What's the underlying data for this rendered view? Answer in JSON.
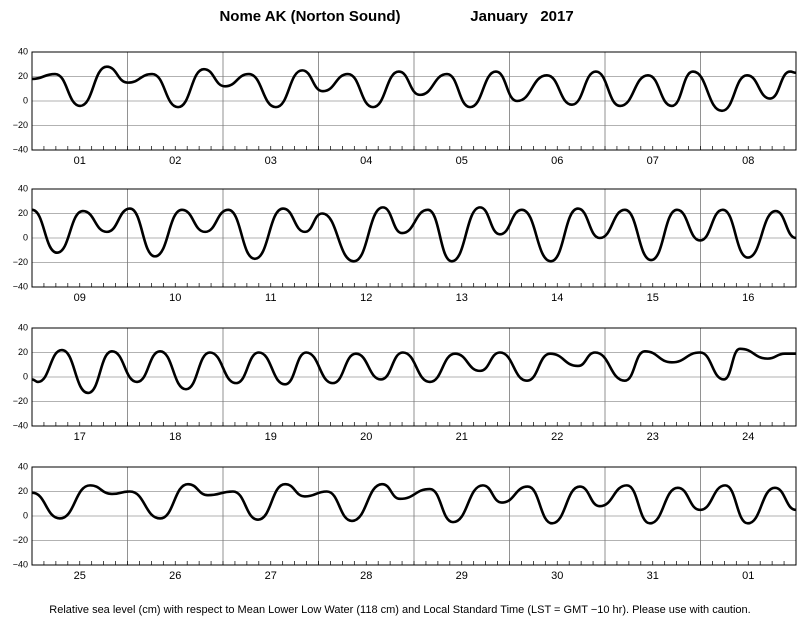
{
  "title": "Nome AK (Norton Sound)",
  "date": "January   2017",
  "footnote": "Relative sea level (cm) with respect to Mean Lower Low Water (118 cm) and Local Standard Time (LST = GMT −10 hr). Please use with caution.",
  "chart_data": [
    {
      "type": "line",
      "xlim": [
        0,
        192
      ],
      "ylim": [
        -40,
        40
      ],
      "yticks": [
        40,
        20,
        0,
        {
          "value": -20,
          "label": "−20"
        },
        {
          "value": -40,
          "label": "−40"
        }
      ],
      "xticks": [
        {
          "value": 12,
          "label": "01"
        },
        {
          "value": 36,
          "label": "02"
        },
        {
          "value": 60,
          "label": "03"
        },
        {
          "value": 84,
          "label": "04"
        },
        {
          "value": 108,
          "label": "05"
        },
        {
          "value": 132,
          "label": "06"
        },
        {
          "value": 156,
          "label": "07"
        },
        {
          "value": 180,
          "label": "08"
        }
      ],
      "xgrid": [
        24,
        48,
        72,
        96,
        120,
        144,
        168
      ],
      "series": [
        {
          "color": "#000000",
          "x": [
            0,
            5.8,
            12.1,
            18.8,
            24.1,
            30.2,
            36.7,
            43.2,
            48.5,
            54.5,
            61.3,
            67.9,
            73.1,
            79.4,
            85.7,
            92.2,
            97.5,
            104.3,
            110.1,
            116.6,
            121.9,
            129.4,
            135.7,
            141.7,
            147.8,
            154.8,
            160.8,
            166.1,
            173.4,
            179.7,
            185.5,
            190.5,
            192
          ],
          "values": [
            18,
            22,
            -4,
            28,
            15,
            22,
            -5,
            26,
            12,
            22,
            -5,
            25,
            8,
            22,
            -5,
            24,
            5,
            22,
            -5,
            24,
            0,
            21,
            -3,
            24,
            -4,
            21,
            -4,
            24,
            -8,
            21,
            2,
            24,
            23
          ]
        }
      ]
    },
    {
      "type": "line",
      "xlim": [
        0,
        192
      ],
      "ylim": [
        -40,
        40
      ],
      "yticks": [
        40,
        20,
        0,
        {
          "value": -20,
          "label": "−20"
        },
        {
          "value": -40,
          "label": "−40"
        }
      ],
      "xticks": [
        {
          "value": 12,
          "label": "09"
        },
        {
          "value": 36,
          "label": "10"
        },
        {
          "value": 60,
          "label": "11"
        },
        {
          "value": 84,
          "label": "12"
        },
        {
          "value": 108,
          "label": "13"
        },
        {
          "value": 132,
          "label": "14"
        },
        {
          "value": 156,
          "label": "15"
        },
        {
          "value": 180,
          "label": "16"
        }
      ],
      "xgrid": [
        24,
        48,
        72,
        96,
        120,
        144,
        168
      ],
      "series": [
        {
          "color": "#000000",
          "x": [
            0,
            6.3,
            12.8,
            18.8,
            24.6,
            30.9,
            37.7,
            43.5,
            49.3,
            56,
            63.1,
            68.6,
            72.9,
            80.9,
            88.2,
            93,
            99.5,
            105.5,
            112.6,
            117.6,
            123.1,
            130.4,
            137.2,
            142.7,
            149,
            155.6,
            162.1,
            167.9,
            173.6,
            179.9,
            186.9,
            192
          ],
          "values": [
            23,
            -12,
            22,
            5,
            24,
            -15,
            23,
            5,
            23,
            -17,
            24,
            5,
            20,
            -19,
            25,
            4,
            23,
            -19,
            25,
            3,
            23,
            -19,
            24,
            0,
            23,
            -18,
            23,
            -2,
            23,
            -16,
            22,
            0
          ]
        }
      ]
    },
    {
      "type": "line",
      "xlim": [
        0,
        192
      ],
      "ylim": [
        -40,
        40
      ],
      "yticks": [
        40,
        20,
        0,
        {
          "value": -20,
          "label": "−20"
        },
        {
          "value": -40,
          "label": "−40"
        }
      ],
      "xticks": [
        {
          "value": 12,
          "label": "17"
        },
        {
          "value": 36,
          "label": "18"
        },
        {
          "value": 60,
          "label": "19"
        },
        {
          "value": 84,
          "label": "20"
        },
        {
          "value": 108,
          "label": "21"
        },
        {
          "value": 132,
          "label": "22"
        },
        {
          "value": 156,
          "label": "23"
        },
        {
          "value": 180,
          "label": "24"
        }
      ],
      "xgrid": [
        24,
        48,
        72,
        96,
        120,
        144,
        168
      ],
      "series": [
        {
          "color": "#000000",
          "x": [
            0,
            1.5,
            7.5,
            14.1,
            20.1,
            26.4,
            32.2,
            38.7,
            44.7,
            51.3,
            57,
            63.6,
            68.9,
            75.6,
            81.4,
            87.7,
            93.2,
            100,
            106.3,
            112.6,
            117.6,
            124.4,
            130.2,
            137.2,
            141.5,
            149,
            154,
            160.8,
            167.9,
            173.9,
            177.9,
            184.9,
            189.2,
            192
          ],
          "values": [
            -2,
            -4,
            22,
            -13,
            21,
            -4,
            21,
            -10,
            20,
            -5,
            20,
            -6,
            20,
            -5,
            19,
            -2,
            20,
            -4,
            19,
            5,
            20,
            -3,
            19,
            9,
            20,
            -3,
            21,
            12,
            20,
            -2,
            23,
            15,
            19,
            19
          ]
        }
      ]
    },
    {
      "type": "line",
      "xlim": [
        0,
        192
      ],
      "ylim": [
        -40,
        40
      ],
      "yticks": [
        40,
        20,
        0,
        {
          "value": -20,
          "label": "−20"
        },
        {
          "value": -40,
          "label": "−40"
        }
      ],
      "xticks": [
        {
          "value": 12,
          "label": "25"
        },
        {
          "value": 36,
          "label": "26"
        },
        {
          "value": 60,
          "label": "27"
        },
        {
          "value": 84,
          "label": "28"
        },
        {
          "value": 108,
          "label": "29"
        },
        {
          "value": 132,
          "label": "30"
        },
        {
          "value": 156,
          "label": "31"
        },
        {
          "value": 180,
          "label": "01"
        }
      ],
      "xgrid": [
        24,
        48,
        72,
        96,
        120,
        144,
        168
      ],
      "series": [
        {
          "color": "#000000",
          "x": [
            0,
            7,
            14.6,
            20.1,
            24.6,
            32.2,
            39.2,
            44.2,
            50.5,
            56.8,
            63.6,
            68.6,
            74.1,
            80.4,
            88,
            92.5,
            100,
            105.8,
            113.3,
            118.1,
            124.6,
            130.7,
            137.7,
            142.7,
            149.5,
            155.3,
            162.3,
            167.9,
            174.2,
            179.9,
            186.7,
            192
          ],
          "values": [
            19,
            -2,
            25,
            18,
            20,
            -2,
            26,
            17,
            20,
            -3,
            26,
            16,
            20,
            -4,
            26,
            14,
            22,
            -5,
            25,
            11,
            24,
            -6,
            24,
            8,
            25,
            -6,
            23,
            5,
            25,
            -6,
            23,
            5
          ]
        }
      ]
    }
  ]
}
